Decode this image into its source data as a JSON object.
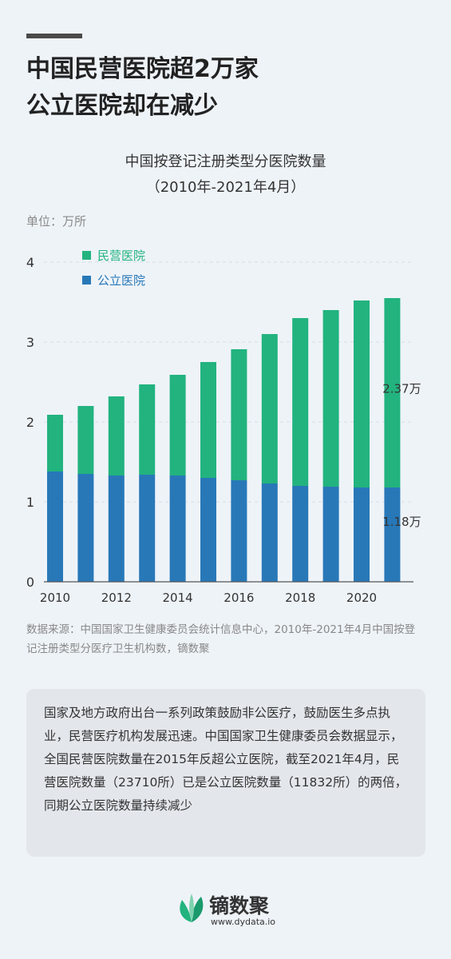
{
  "headline": {
    "line1": "中国民营医院超2万家",
    "line2": "公立医院却在减少"
  },
  "chart_data": {
    "type": "bar",
    "stacked": true,
    "title": "中国按登记注册类型分医院数量",
    "subtitle": "（2010年-2021年4月）",
    "unit_label": "单位：万所",
    "x": [
      2010,
      2011,
      2012,
      2013,
      2014,
      2015,
      2016,
      2017,
      2018,
      2019,
      2020,
      2021
    ],
    "x_tick_labels": [
      "2010",
      "2012",
      "2014",
      "2016",
      "2018",
      "2020"
    ],
    "x_ticks": [
      2010,
      2012,
      2014,
      2016,
      2018,
      2020
    ],
    "y_ticks": [
      0,
      1,
      2,
      3,
      4
    ],
    "y_tick_labels": [
      "0",
      "1",
      "2",
      "3",
      "4"
    ],
    "ylim": [
      0,
      4
    ],
    "legend_position": "top-left",
    "series": [
      {
        "name": "公立医院",
        "color": "#2878b8",
        "values": [
          1.38,
          1.35,
          1.33,
          1.34,
          1.33,
          1.3,
          1.27,
          1.23,
          1.2,
          1.19,
          1.18,
          1.18
        ]
      },
      {
        "name": "民营医院",
        "color": "#22b37f",
        "values": [
          0.71,
          0.85,
          0.99,
          1.13,
          1.26,
          1.45,
          1.64,
          1.87,
          2.1,
          2.21,
          2.34,
          2.37
        ]
      }
    ],
    "annotations": [
      {
        "text": "2.37万",
        "series": "民营医院",
        "x": 2021
      },
      {
        "text": "1.18万",
        "series": "公立医院",
        "x": 2021
      }
    ]
  },
  "source": "数据来源：中国国家卫生健康委员会统计信息中心，2010年-2021年4月中国按登记注册类型分医疗卫生机构数，镝数聚",
  "description": "国家及地方政府出台一系列政策鼓励非公医疗，鼓励医生多点执业，民营医疗机构发展迅速。中国国家卫生健康委员会数据显示，全国民营医院数量在2015年反超公立医院，截至2021年4月，民营医院数量（23710所）已是公立医院数量（11832所）的两倍，同期公立医院数量持续减少",
  "brand": {
    "name": "镝数聚",
    "url": "www.dydata.io",
    "leaf_color": "#22b37f"
  }
}
